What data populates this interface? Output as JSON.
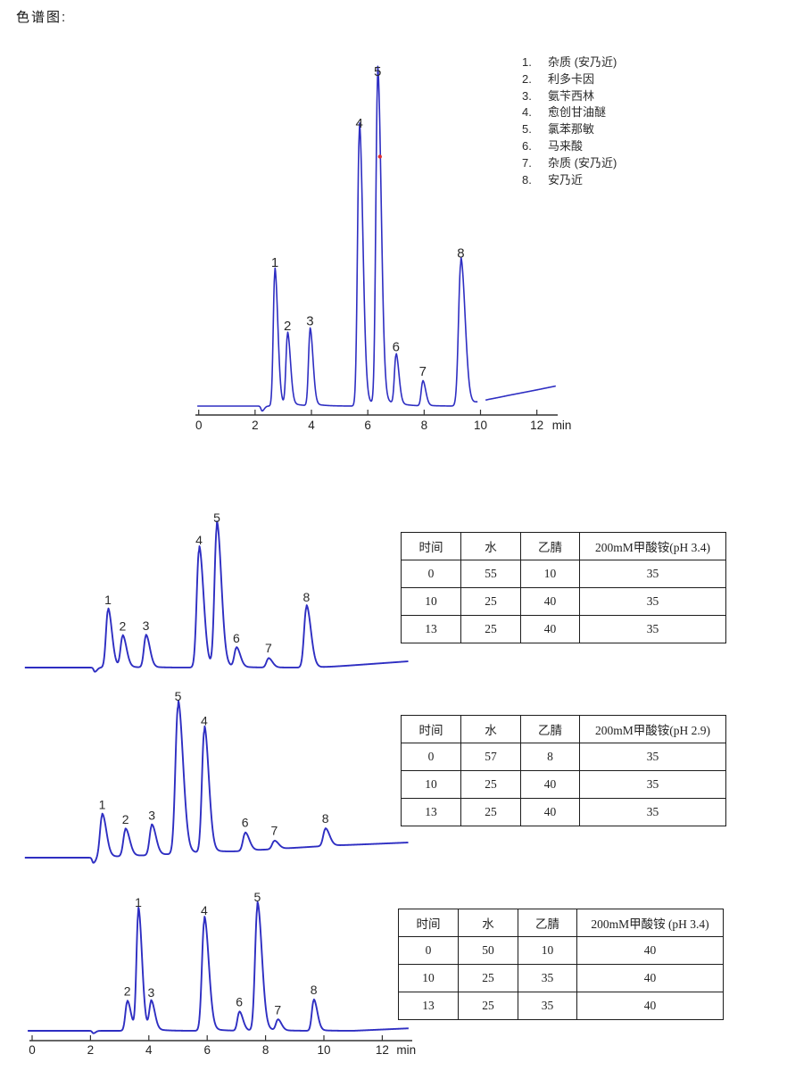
{
  "page": {
    "title": "色谱图:"
  },
  "legend": {
    "items": [
      {
        "num": "1.",
        "label": "杂质 (安乃近)"
      },
      {
        "num": "2.",
        "label": "利多卡因"
      },
      {
        "num": "3.",
        "label": "氨苄西林"
      },
      {
        "num": "4.",
        "label": "愈创甘油醚"
      },
      {
        "num": "5.",
        "label": "氯苯那敏"
      },
      {
        "num": "6.",
        "label": "马来酸"
      },
      {
        "num": "7.",
        "label": "杂质 (安乃近)"
      },
      {
        "num": "8.",
        "label": "安乃近"
      }
    ]
  },
  "chart_data": [
    {
      "type": "line",
      "id": "main-chromatogram",
      "title": "",
      "xlabel": "min",
      "x_range": [
        -0.05,
        12.68
      ],
      "x_axis": {
        "ticks": [
          0,
          2,
          4,
          6,
          8,
          10,
          12
        ],
        "unit": "min"
      },
      "line_color": "#2e2ec2",
      "default_sigma": 0.055,
      "t_start": -0.05,
      "t_end": 12.68,
      "gap": [
        9.9,
        10.18
      ],
      "baseline": [
        [
          -0.05,
          0
        ],
        [
          9.6,
          0
        ],
        [
          9.82,
          0.008
        ],
        [
          10.3,
          0.02
        ],
        [
          11,
          0.033
        ],
        [
          12,
          0.05
        ],
        [
          12.68,
          0.062
        ]
      ],
      "peaks": [
        {
          "label": "1",
          "rt": 2.7,
          "height": 0.41
        },
        {
          "label": "2",
          "rt": 3.15,
          "height": 0.215
        },
        {
          "label": "3",
          "rt": 3.95,
          "height": 0.23
        },
        {
          "label": "4",
          "rt": 5.7,
          "height": 0.84,
          "sigma": 0.065
        },
        {
          "label": "5",
          "rt": 6.35,
          "height": 1.0,
          "sigma": 0.065
        },
        {
          "label": "6",
          "rt": 7.0,
          "height": 0.15
        },
        {
          "label": "7",
          "rt": 7.95,
          "height": 0.075
        },
        {
          "label": "8",
          "rt": 9.3,
          "height": 0.44,
          "sigma": 0.08
        },
        {
          "label": "",
          "rt": 2.25,
          "height": -0.015,
          "sigma": 0.04
        }
      ],
      "marker": {
        "color": "#e03030",
        "rt": 6.43,
        "frac": 0.77
      }
    },
    {
      "type": "line",
      "id": "gradient-chromatogram-1",
      "title": "",
      "x_range": [
        -0.25,
        12.9
      ],
      "x_axis": null,
      "line_color": "#2e2ec2",
      "default_sigma": 0.07,
      "t_start": -0.25,
      "t_end": 12.9,
      "baseline": [
        [
          -0.25,
          0
        ],
        [
          9.9,
          0
        ],
        [
          12.9,
          0.045
        ]
      ],
      "peaks": [
        {
          "label": "1",
          "rt": 2.6,
          "height": 0.41
        },
        {
          "label": "2",
          "rt": 3.1,
          "height": 0.22
        },
        {
          "label": "3",
          "rt": 3.9,
          "height": 0.225
        },
        {
          "label": "4",
          "rt": 5.72,
          "height": 0.84,
          "sigma": 0.08
        },
        {
          "label": "5",
          "rt": 6.33,
          "height": 1.0,
          "sigma": 0.08
        },
        {
          "label": "6",
          "rt": 7.0,
          "height": 0.135
        },
        {
          "label": "7",
          "rt": 8.1,
          "height": 0.065
        },
        {
          "label": "8",
          "rt": 9.4,
          "height": 0.43,
          "sigma": 0.08
        },
        {
          "label": "",
          "rt": 2.15,
          "height": -0.03,
          "sigma": 0.04
        }
      ]
    },
    {
      "type": "line",
      "id": "gradient-chromatogram-2",
      "title": "",
      "x_range": [
        -0.25,
        12.9
      ],
      "x_axis": null,
      "line_color": "#2e2ec2",
      "default_sigma": 0.075,
      "t_start": -0.25,
      "t_end": 12.9,
      "baseline": [
        [
          -0.25,
          0
        ],
        [
          2.2,
          0
        ],
        [
          7,
          0.042
        ],
        [
          10,
          0.079
        ],
        [
          12.9,
          0.103
        ]
      ],
      "peaks": [
        {
          "label": "1",
          "rt": 2.4,
          "height": 0.285
        },
        {
          "label": "2",
          "rt": 3.2,
          "height": 0.18
        },
        {
          "label": "3",
          "rt": 4.1,
          "height": 0.2
        },
        {
          "label": "5",
          "rt": 5.0,
          "height": 1.0,
          "sigma": 0.09
        },
        {
          "label": "4",
          "rt": 5.9,
          "height": 0.825,
          "sigma": 0.08
        },
        {
          "label": "6",
          "rt": 7.3,
          "height": 0.12
        },
        {
          "label": "7",
          "rt": 8.3,
          "height": 0.055
        },
        {
          "label": "8",
          "rt": 10.05,
          "height": 0.115
        },
        {
          "label": "",
          "rt": 2.1,
          "height": -0.035,
          "sigma": 0.04
        }
      ]
    },
    {
      "type": "line",
      "id": "gradient-chromatogram-3",
      "title": "",
      "xlabel": "min",
      "x_range": [
        -0.15,
        12.9
      ],
      "x_axis": {
        "ticks": [
          0,
          2,
          4,
          6,
          8,
          10,
          12
        ],
        "unit": "min"
      },
      "line_color": "#2e2ec2",
      "default_sigma": 0.065,
      "t_start": -0.15,
      "t_end": 12.9,
      "baseline": [
        [
          -0.15,
          0
        ],
        [
          11,
          0
        ],
        [
          12.9,
          0.02
        ]
      ],
      "peaks": [
        {
          "label": "2",
          "rt": 3.26,
          "height": 0.235
        },
        {
          "label": "1",
          "rt": 3.64,
          "height": 0.955
        },
        {
          "label": "3",
          "rt": 4.08,
          "height": 0.225
        },
        {
          "label": "4",
          "rt": 5.9,
          "height": 0.89,
          "sigma": 0.08
        },
        {
          "label": "6",
          "rt": 7.1,
          "height": 0.15
        },
        {
          "label": "5",
          "rt": 7.72,
          "height": 1.0,
          "sigma": 0.08
        },
        {
          "label": "7",
          "rt": 8.42,
          "height": 0.085
        },
        {
          "label": "8",
          "rt": 9.65,
          "height": 0.245
        },
        {
          "label": "",
          "rt": 2.1,
          "height": -0.02,
          "sigma": 0.04
        }
      ]
    }
  ],
  "tables": [
    {
      "headers": [
        "时间",
        "水",
        "乙腈",
        "200mM甲酸铵(pH 3.4)"
      ],
      "rows": [
        [
          "0",
          "55",
          "10",
          "35"
        ],
        [
          "10",
          "25",
          "40",
          "35"
        ],
        [
          "13",
          "25",
          "40",
          "35"
        ]
      ]
    },
    {
      "headers": [
        "时间",
        "水",
        "乙腈",
        "200mM甲酸铵(pH 2.9)"
      ],
      "rows": [
        [
          "0",
          "57",
          "8",
          "35"
        ],
        [
          "10",
          "25",
          "40",
          "35"
        ],
        [
          "13",
          "25",
          "40",
          "35"
        ]
      ]
    },
    {
      "headers": [
        "时间",
        "水",
        "乙腈",
        "200mM甲酸铵 (pH 3.4)"
      ],
      "rows": [
        [
          "0",
          "50",
          "10",
          "40"
        ],
        [
          "10",
          "25",
          "35",
          "40"
        ],
        [
          "13",
          "25",
          "35",
          "40"
        ]
      ]
    }
  ]
}
